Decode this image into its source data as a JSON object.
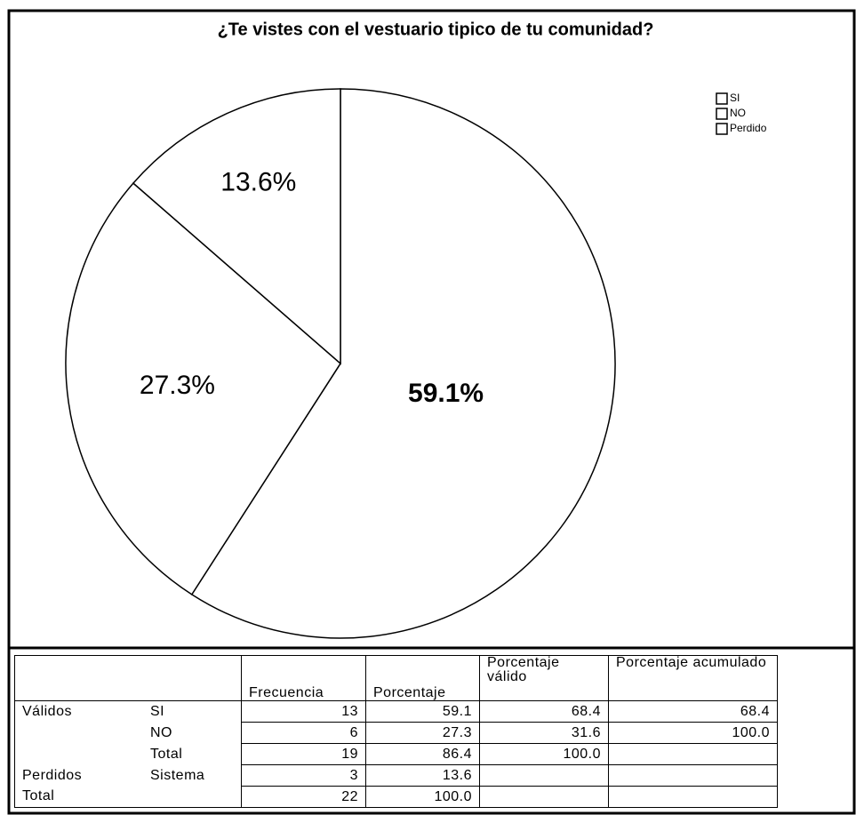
{
  "chart_data": {
    "type": "pie",
    "title": "¿Te vistes con el vestuario tipico de tu comunidad?",
    "categories": [
      "SI",
      "NO",
      "Perdido"
    ],
    "values": [
      59.1,
      27.3,
      13.6
    ],
    "value_labels": [
      "59.1%",
      "27.3%",
      "13.6%"
    ],
    "colors": [
      "#ffffff",
      "#ffffff",
      "#ffffff"
    ],
    "legend": "upper right"
  },
  "table": {
    "header": [
      "Frecuencia",
      "Porcentaje",
      "Porcentaje válido",
      "Porcentaje acumulado"
    ],
    "rows": [
      {
        "group": "Válidos",
        "label": "SI",
        "cells": [
          "13",
          "59.1",
          "68.4",
          "68.4"
        ]
      },
      {
        "label": "NO",
        "cells": [
          "6",
          "27.3",
          "31.6",
          "100.0"
        ]
      },
      {
        "label": "Total",
        "cells": [
          "19",
          "86.4",
          "100.0",
          null
        ]
      },
      {
        "group": "Perdidos",
        "label": "Sistema",
        "cells": [
          "3",
          "13.6",
          null,
          null
        ]
      },
      {
        "group": "Total",
        "cells": [
          "22",
          "100.0",
          null,
          null
        ]
      }
    ]
  }
}
